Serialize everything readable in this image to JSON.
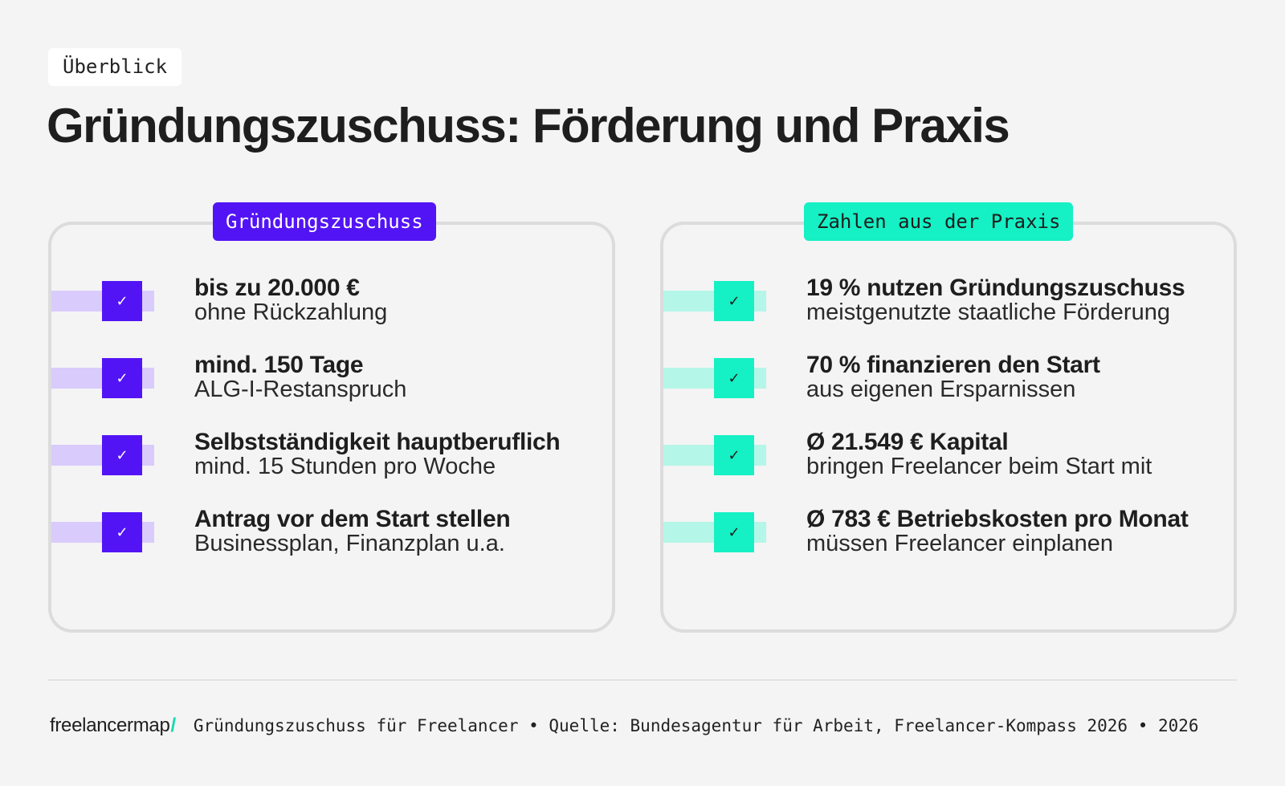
{
  "tag": "Überblick",
  "title": "Gründungszuschuss: Förderung und Praxis",
  "colors": {
    "purple": "#5314f5",
    "teal": "#15f0c4",
    "background": "#f4f4f4"
  },
  "left_card": {
    "badge": "Gründungszuschuss",
    "items": [
      {
        "icon": "check-icon",
        "title": "bis zu 20.000 €",
        "sub": "ohne Rückzahlung"
      },
      {
        "icon": "check-icon",
        "title": "mind. 150 Tage",
        "sub": "ALG-I-Restanspruch"
      },
      {
        "icon": "check-icon",
        "title": "Selbstständigkeit hauptberuflich",
        "sub": "mind. 15 Stunden pro Woche"
      },
      {
        "icon": "check-icon",
        "title": "Antrag vor dem Start stellen",
        "sub": "Businessplan, Finanzplan u.a."
      }
    ]
  },
  "right_card": {
    "badge": "Zahlen aus der Praxis",
    "items": [
      {
        "icon": "check-icon",
        "title": "19 % nutzen Gründungszuschuss",
        "sub": "meistgenutzte staatliche Förderung"
      },
      {
        "icon": "check-icon",
        "title": "70 % finanzieren den Start",
        "sub": "aus eigenen Ersparnissen"
      },
      {
        "icon": "check-icon",
        "title": "Ø 21.549 € Kapital",
        "sub": "bringen Freelancer beim Start mit"
      },
      {
        "icon": "check-icon",
        "title": "Ø 783 € Betriebskosten pro Monat",
        "sub": "müssen Freelancer einplanen"
      }
    ]
  },
  "footer": {
    "logo": "freelancermap",
    "logo_slash": "/",
    "text": "Gründungszuschuss für Freelancer • Quelle: Bundesagentur für Arbeit, Freelancer-Kompass 2026 • 2026"
  }
}
